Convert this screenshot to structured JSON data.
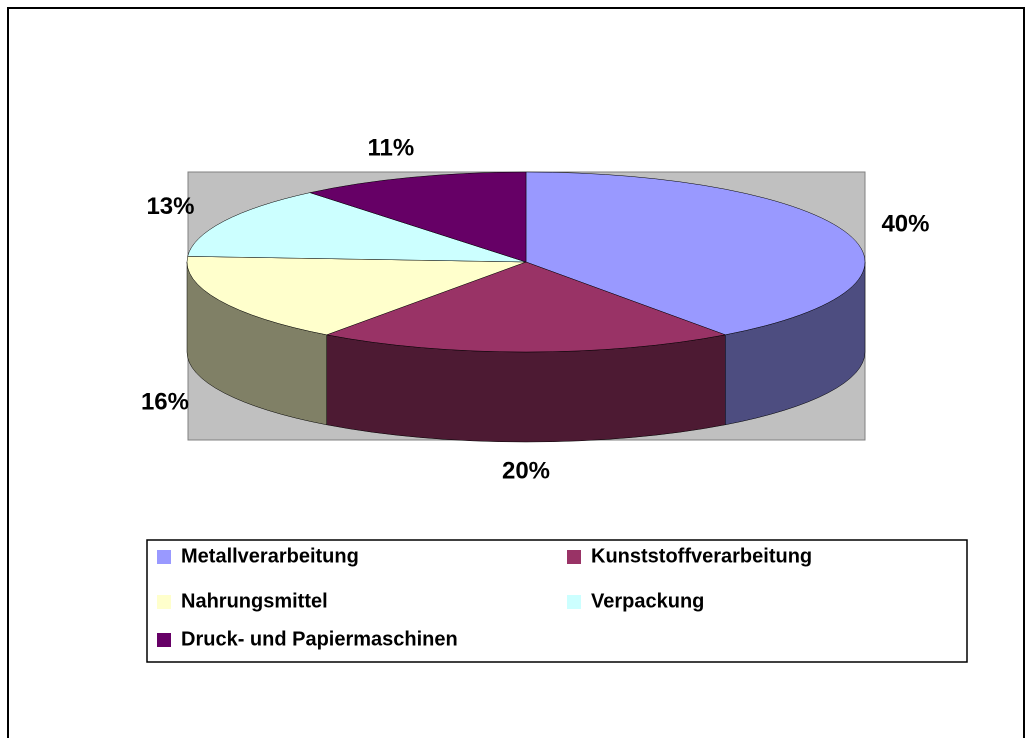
{
  "chart_data": {
    "type": "pie3d",
    "categories": [
      "Metallverarbeitung",
      "Kunststoffverarbeitung",
      "Nahrungsmittel",
      "Verpackung",
      "Druck- und Papiermaschinen"
    ],
    "values": [
      40,
      20,
      16,
      13,
      11
    ],
    "value_labels": [
      "40%",
      "20%",
      "16%",
      "13%",
      "11%"
    ],
    "colors": [
      "#9999ff",
      "#993366",
      "#ffffcc",
      "#ccffff",
      "#660066"
    ],
    "legend": "bottom"
  }
}
